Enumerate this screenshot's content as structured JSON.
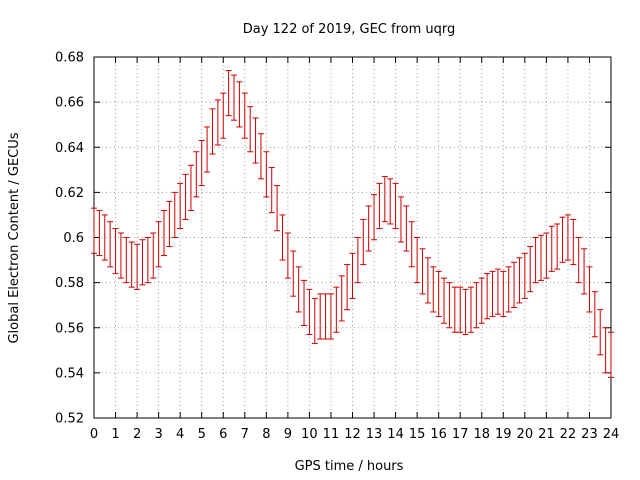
{
  "chart_data": {
    "type": "scatter",
    "title": "Day 122 of 2019, GEC from uqrg",
    "xlabel": "GPS time / hours",
    "ylabel": "Global Electron Content / GECUs",
    "xlim": [
      0,
      24
    ],
    "ylim": [
      0.52,
      0.68
    ],
    "grid": true,
    "x_ticks": [
      0,
      1,
      2,
      3,
      4,
      5,
      6,
      7,
      8,
      9,
      10,
      11,
      12,
      13,
      14,
      15,
      16,
      17,
      18,
      19,
      20,
      21,
      22,
      23,
      24
    ],
    "y_ticks": [
      0.52,
      0.54,
      0.56,
      0.58,
      0.6,
      0.62,
      0.64,
      0.66,
      0.68
    ],
    "y_tick_labels": [
      "0.52",
      "0.54",
      "0.56",
      "0.58",
      "0.6",
      "0.62",
      "0.64",
      "0.66",
      "0.68"
    ],
    "error_color": "#cc0000",
    "series": [
      {
        "name": "GEC",
        "x": [
          0,
          0.25,
          0.5,
          0.75,
          1,
          1.25,
          1.5,
          1.75,
          2,
          2.25,
          2.5,
          2.75,
          3,
          3.25,
          3.5,
          3.75,
          4,
          4.25,
          4.5,
          4.75,
          5,
          5.25,
          5.5,
          5.75,
          6,
          6.25,
          6.5,
          6.75,
          7,
          7.25,
          7.5,
          7.75,
          8,
          8.25,
          8.5,
          8.75,
          9,
          9.25,
          9.5,
          9.75,
          10,
          10.25,
          10.5,
          10.75,
          11,
          11.25,
          11.5,
          11.75,
          12,
          12.25,
          12.5,
          12.75,
          13,
          13.25,
          13.5,
          13.75,
          14,
          14.25,
          14.5,
          14.75,
          15,
          15.25,
          15.5,
          15.75,
          16,
          16.25,
          16.5,
          16.75,
          17,
          17.25,
          17.5,
          17.75,
          18,
          18.25,
          18.5,
          18.75,
          19,
          19.25,
          19.5,
          19.75,
          20,
          20.25,
          20.5,
          20.75,
          21,
          21.25,
          21.5,
          21.75,
          22,
          22.25,
          22.5,
          22.75,
          23,
          23.25,
          23.5,
          23.75,
          24
        ],
        "y": [
          0.603,
          0.602,
          0.6,
          0.597,
          0.594,
          0.592,
          0.59,
          0.588,
          0.587,
          0.589,
          0.59,
          0.592,
          0.597,
          0.602,
          0.606,
          0.61,
          0.614,
          0.618,
          0.622,
          0.628,
          0.633,
          0.639,
          0.647,
          0.651,
          0.654,
          0.664,
          0.662,
          0.659,
          0.654,
          0.648,
          0.643,
          0.636,
          0.628,
          0.621,
          0.613,
          0.6,
          0.592,
          0.584,
          0.577,
          0.571,
          0.567,
          0.563,
          0.565,
          0.565,
          0.565,
          0.568,
          0.573,
          0.578,
          0.583,
          0.59,
          0.598,
          0.604,
          0.609,
          0.614,
          0.617,
          0.616,
          0.614,
          0.608,
          0.604,
          0.597,
          0.59,
          0.585,
          0.581,
          0.577,
          0.575,
          0.572,
          0.57,
          0.568,
          0.568,
          0.567,
          0.568,
          0.57,
          0.572,
          0.574,
          0.575,
          0.576,
          0.575,
          0.577,
          0.579,
          0.581,
          0.583,
          0.586,
          0.59,
          0.591,
          0.592,
          0.595,
          0.596,
          0.599,
          0.6,
          0.598,
          0.59,
          0.585,
          0.577,
          0.566,
          0.558,
          0.55,
          0.548
        ],
        "err": [
          0.01,
          0.01,
          0.01,
          0.01,
          0.01,
          0.01,
          0.01,
          0.01,
          0.01,
          0.01,
          0.01,
          0.01,
          0.01,
          0.01,
          0.01,
          0.01,
          0.01,
          0.01,
          0.01,
          0.01,
          0.01,
          0.01,
          0.01,
          0.01,
          0.01,
          0.01,
          0.01,
          0.01,
          0.01,
          0.01,
          0.01,
          0.01,
          0.01,
          0.01,
          0.01,
          0.01,
          0.01,
          0.01,
          0.01,
          0.01,
          0.01,
          0.01,
          0.01,
          0.01,
          0.01,
          0.01,
          0.01,
          0.01,
          0.01,
          0.01,
          0.01,
          0.01,
          0.01,
          0.01,
          0.01,
          0.01,
          0.01,
          0.01,
          0.01,
          0.01,
          0.01,
          0.01,
          0.01,
          0.01,
          0.01,
          0.01,
          0.01,
          0.01,
          0.01,
          0.01,
          0.01,
          0.01,
          0.01,
          0.01,
          0.01,
          0.01,
          0.01,
          0.01,
          0.01,
          0.01,
          0.01,
          0.01,
          0.01,
          0.01,
          0.01,
          0.01,
          0.01,
          0.01,
          0.01,
          0.01,
          0.01,
          0.01,
          0.01,
          0.01,
          0.01,
          0.01,
          0.01
        ]
      }
    ]
  }
}
